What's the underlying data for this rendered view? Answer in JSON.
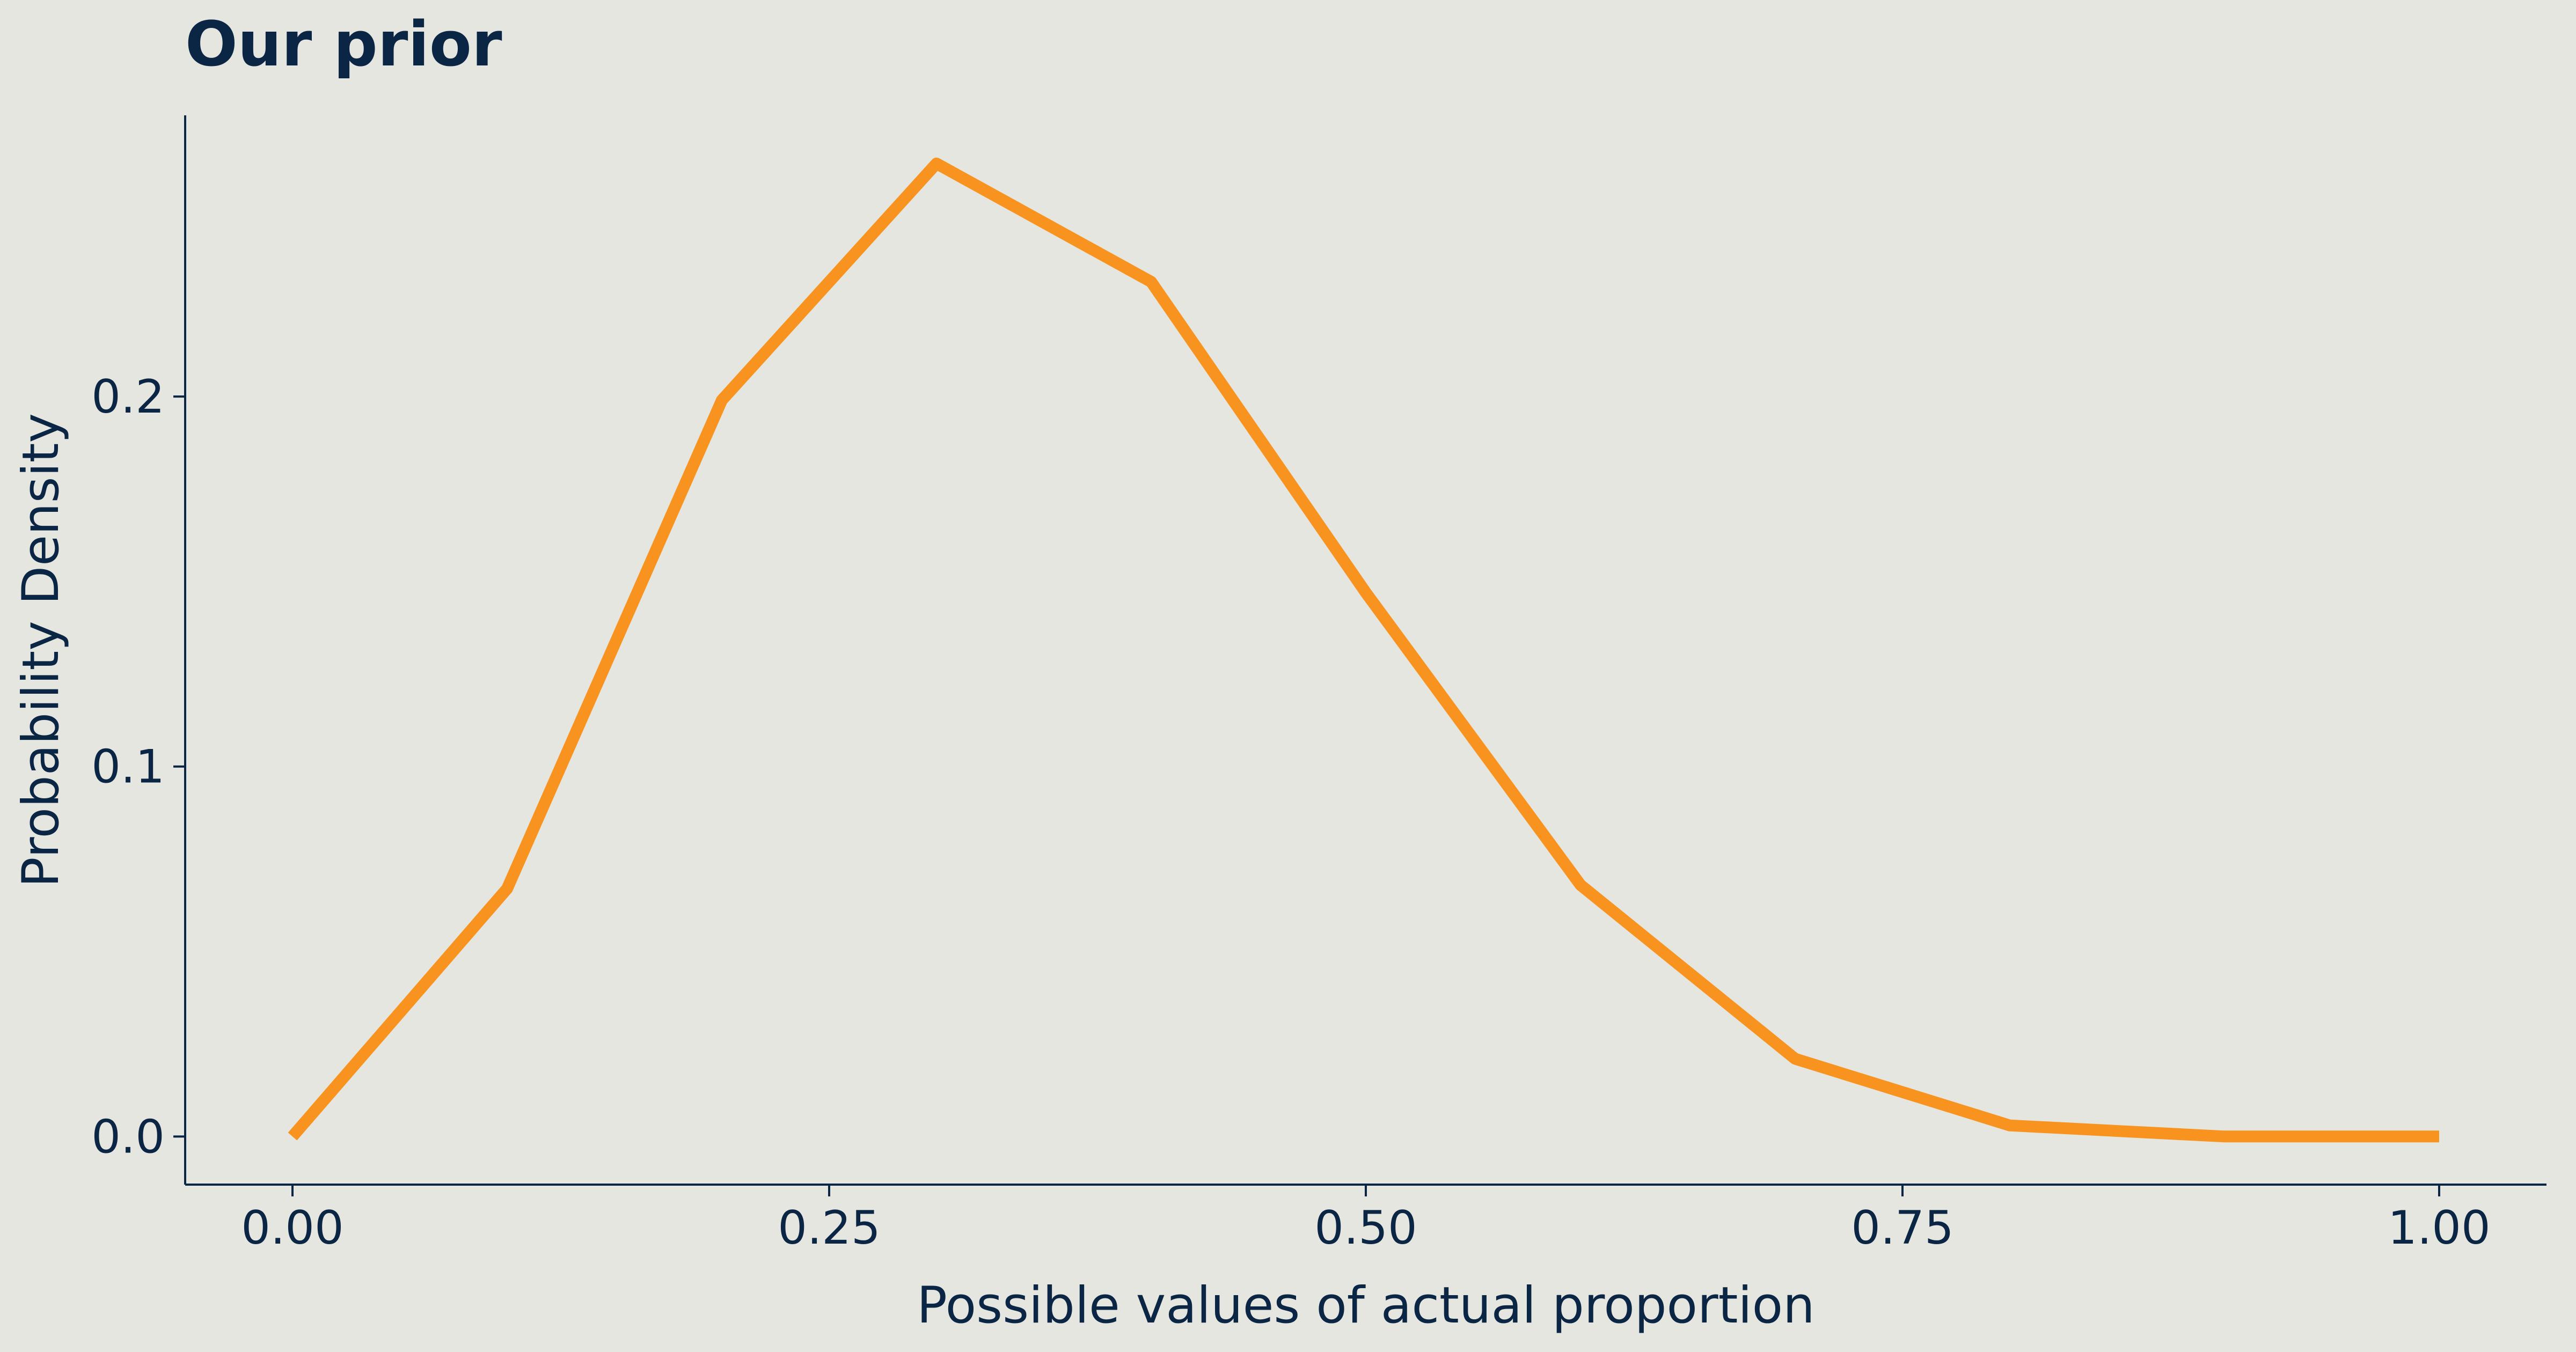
{
  "chart_data": {
    "type": "line",
    "title": "Our prior",
    "xlabel": "Possible values of actual proportion",
    "ylabel": "Probability Density",
    "xlim": [
      -0.05,
      1.05
    ],
    "ylim": [
      -0.013,
      0.276
    ],
    "xticks": [
      {
        "value": 0.0,
        "label": "0.00"
      },
      {
        "value": 0.25,
        "label": "0.25"
      },
      {
        "value": 0.5,
        "label": "0.50"
      },
      {
        "value": 0.75,
        "label": "0.75"
      },
      {
        "value": 1.0,
        "label": "1.00"
      }
    ],
    "yticks": [
      {
        "value": 0.0,
        "label": "0.0"
      },
      {
        "value": 0.1,
        "label": "0.1"
      },
      {
        "value": 0.2,
        "label": "0.2"
      }
    ],
    "grid": false,
    "legend": "none",
    "series": [
      {
        "color": "#f7931e",
        "x": [
          0.0,
          0.1,
          0.2,
          0.3,
          0.4,
          0.5,
          0.6,
          0.7,
          0.8,
          0.9,
          1.0
        ],
        "y": [
          0.0,
          0.067,
          0.199,
          0.263,
          0.231,
          0.147,
          0.068,
          0.021,
          0.003,
          0.0,
          0.0
        ]
      }
    ]
  }
}
